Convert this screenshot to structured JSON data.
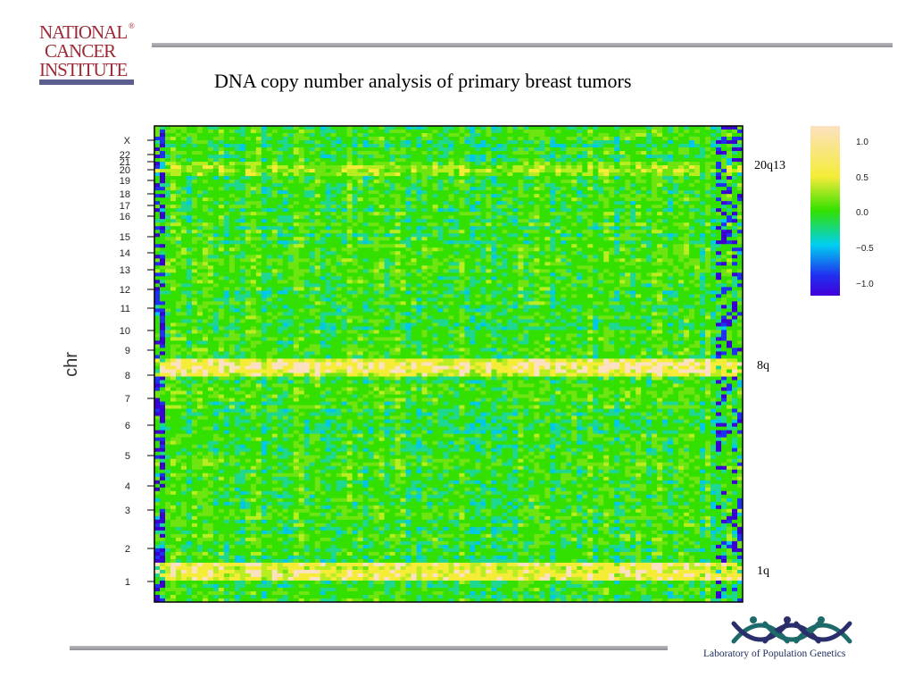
{
  "header": {
    "org_logo_line1": "NATIONAL",
    "org_logo_line2": "CANCER",
    "org_logo_line3": "INSTITUTE",
    "org_logo_reg": "®",
    "title": "DNA copy number analysis of primary breast tumors"
  },
  "chart_data": {
    "type": "heatmap",
    "title": "DNA copy number analysis of primary breast tumors",
    "ylabel": "chr",
    "xlabel": "",
    "y_ticks": [
      "X",
      "22",
      "21",
      "20",
      "19",
      "18",
      "17",
      "16",
      "15",
      "14",
      "13",
      "12",
      "11",
      "10",
      "9",
      "8",
      "7",
      "6",
      "5",
      "4",
      "3",
      "2",
      "1"
    ],
    "colorbar": {
      "range": [
        -1.0,
        1.0
      ],
      "ticks": [
        "1.0",
        "0.5",
        "0.0",
        "−0.5",
        "−1.0"
      ],
      "colors": [
        "#fbe1c0",
        "#f5ec38",
        "#33e000",
        "#00d0f0",
        "#2030f0",
        "#4000d8"
      ]
    },
    "annotations": [
      {
        "label": "20q13",
        "region": "chr 20q13 gain"
      },
      {
        "label": "8q",
        "region": "chr 8q gain"
      },
      {
        "label": "1q",
        "region": "chr 1q gain"
      }
    ]
  },
  "footer": {
    "lab_name": "Laboratory of Population Genetics"
  }
}
